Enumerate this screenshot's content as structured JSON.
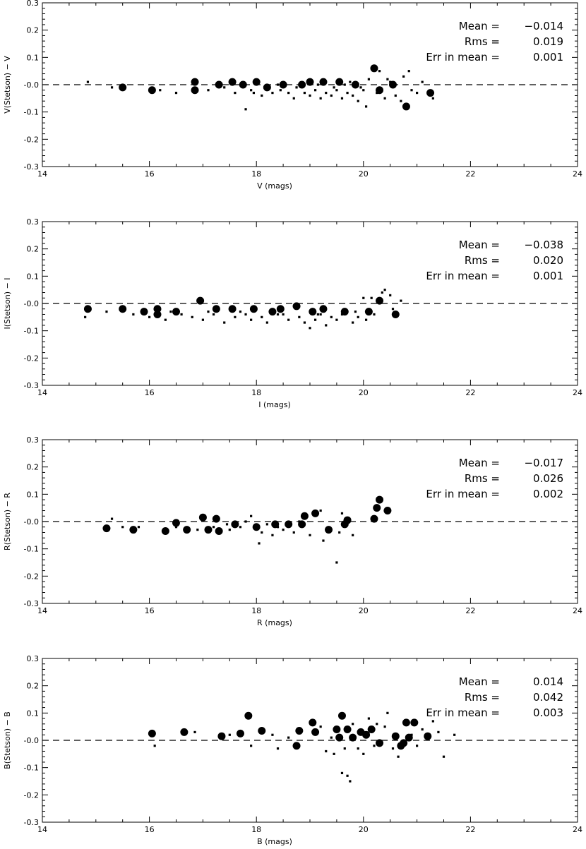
{
  "chart_data": [
    {
      "type": "scatter",
      "xlabel": "V (mags)",
      "ylabel": "V(Stetson) − V",
      "xlim": [
        14,
        24
      ],
      "ylim": [
        -0.3,
        0.3
      ],
      "xticks": [
        "14",
        "16",
        "18",
        "20",
        "22",
        "24"
      ],
      "yticks": [
        "-0.3",
        "-0.2",
        "-0.1",
        "-0.0",
        "0.1",
        "0.2",
        "0.3"
      ],
      "reference_line": 0.0,
      "stats": [
        {
          "label": "Mean =",
          "value": "−0.014"
        },
        {
          "label": "Rms =",
          "value": "0.019"
        },
        {
          "label": "Err in mean =",
          "value": "0.001"
        }
      ],
      "large_points": [
        [
          15.5,
          -0.01
        ],
        [
          16.05,
          -0.02
        ],
        [
          16.85,
          0.01
        ],
        [
          16.85,
          -0.02
        ],
        [
          17.3,
          0.0
        ],
        [
          17.55,
          0.01
        ],
        [
          17.75,
          0.0
        ],
        [
          18.0,
          0.01
        ],
        [
          18.2,
          -0.01
        ],
        [
          18.5,
          0.0
        ],
        [
          18.85,
          0.0
        ],
        [
          19.0,
          0.01
        ],
        [
          19.25,
          0.01
        ],
        [
          19.55,
          0.01
        ],
        [
          19.85,
          0.0
        ],
        [
          20.2,
          0.06
        ],
        [
          20.3,
          -0.02
        ],
        [
          20.55,
          0.0
        ],
        [
          20.8,
          -0.08
        ],
        [
          21.25,
          -0.03
        ]
      ],
      "small_points": [
        [
          14.85,
          0.01
        ],
        [
          15.3,
          -0.01
        ],
        [
          16.5,
          -0.03
        ],
        [
          16.2,
          -0.02
        ],
        [
          17.1,
          -0.02
        ],
        [
          17.4,
          -0.01
        ],
        [
          17.6,
          -0.03
        ],
        [
          17.8,
          -0.09
        ],
        [
          17.9,
          -0.02
        ],
        [
          18.1,
          -0.04
        ],
        [
          18.3,
          -0.03
        ],
        [
          18.4,
          0.0
        ],
        [
          18.6,
          -0.03
        ],
        [
          18.7,
          -0.05
        ],
        [
          18.9,
          -0.03
        ],
        [
          19.0,
          -0.04
        ],
        [
          19.1,
          -0.02
        ],
        [
          19.2,
          -0.05
        ],
        [
          19.3,
          -0.03
        ],
        [
          19.4,
          -0.04
        ],
        [
          19.5,
          -0.02
        ],
        [
          19.6,
          -0.05
        ],
        [
          19.7,
          -0.03
        ],
        [
          19.75,
          0.01
        ],
        [
          19.8,
          -0.04
        ],
        [
          19.9,
          -0.06
        ],
        [
          20.0,
          -0.02
        ],
        [
          20.05,
          -0.08
        ],
        [
          20.1,
          0.02
        ],
        [
          20.3,
          0.05
        ],
        [
          20.4,
          -0.05
        ],
        [
          20.5,
          0.01
        ],
        [
          20.6,
          -0.04
        ],
        [
          20.7,
          -0.06
        ],
        [
          20.75,
          0.03
        ],
        [
          20.85,
          0.05
        ],
        [
          20.9,
          -0.02
        ],
        [
          21.0,
          -0.03
        ],
        [
          21.1,
          0.01
        ],
        [
          21.3,
          -0.05
        ],
        [
          17.95,
          -0.03
        ],
        [
          18.15,
          -0.01
        ],
        [
          18.45,
          -0.02
        ],
        [
          18.75,
          -0.01
        ],
        [
          19.15,
          0.0
        ],
        [
          19.45,
          -0.01
        ],
        [
          19.65,
          0.0
        ],
        [
          19.95,
          -0.01
        ],
        [
          20.25,
          -0.03
        ],
        [
          20.45,
          0.02
        ]
      ]
    },
    {
      "type": "scatter",
      "xlabel": "I (mags)",
      "ylabel": "I(Stetson) − I",
      "xlim": [
        14,
        24
      ],
      "ylim": [
        -0.3,
        0.3
      ],
      "xticks": [
        "14",
        "16",
        "18",
        "20",
        "22",
        "24"
      ],
      "yticks": [
        "-0.3",
        "-0.2",
        "-0.1",
        "-0.0",
        "0.1",
        "0.2",
        "0.3"
      ],
      "reference_line": 0.0,
      "stats": [
        {
          "label": "Mean =",
          "value": "−0.038"
        },
        {
          "label": "Rms =",
          "value": "0.020"
        },
        {
          "label": "Err in mean =",
          "value": "0.001"
        }
      ],
      "large_points": [
        [
          14.85,
          -0.02
        ],
        [
          15.5,
          -0.02
        ],
        [
          15.9,
          -0.03
        ],
        [
          16.15,
          -0.02
        ],
        [
          16.15,
          -0.04
        ],
        [
          16.5,
          -0.03
        ],
        [
          16.95,
          0.01
        ],
        [
          17.25,
          -0.02
        ],
        [
          17.55,
          -0.02
        ],
        [
          17.95,
          -0.02
        ],
        [
          18.3,
          -0.03
        ],
        [
          18.45,
          -0.02
        ],
        [
          18.75,
          -0.01
        ],
        [
          19.05,
          -0.03
        ],
        [
          19.25,
          -0.02
        ],
        [
          19.65,
          -0.03
        ],
        [
          20.1,
          -0.03
        ],
        [
          20.3,
          0.01
        ],
        [
          20.6,
          -0.04
        ]
      ],
      "small_points": [
        [
          14.8,
          -0.05
        ],
        [
          15.2,
          -0.03
        ],
        [
          15.7,
          -0.04
        ],
        [
          16.0,
          -0.05
        ],
        [
          16.3,
          -0.06
        ],
        [
          16.6,
          -0.04
        ],
        [
          16.8,
          -0.05
        ],
        [
          17.0,
          -0.06
        ],
        [
          17.2,
          -0.04
        ],
        [
          17.4,
          -0.07
        ],
        [
          17.6,
          -0.05
        ],
        [
          17.8,
          -0.04
        ],
        [
          17.9,
          -0.06
        ],
        [
          18.1,
          -0.05
        ],
        [
          18.2,
          -0.07
        ],
        [
          18.5,
          -0.04
        ],
        [
          18.6,
          -0.06
        ],
        [
          18.8,
          -0.05
        ],
        [
          18.9,
          -0.07
        ],
        [
          19.0,
          -0.09
        ],
        [
          19.1,
          -0.06
        ],
        [
          19.2,
          -0.04
        ],
        [
          19.3,
          -0.08
        ],
        [
          19.4,
          -0.05
        ],
        [
          19.5,
          -0.06
        ],
        [
          19.6,
          -0.04
        ],
        [
          19.8,
          -0.07
        ],
        [
          19.9,
          -0.05
        ],
        [
          20.0,
          0.02
        ],
        [
          20.05,
          -0.06
        ],
        [
          20.15,
          0.02
        ],
        [
          20.2,
          -0.04
        ],
        [
          20.35,
          0.04
        ],
        [
          20.4,
          0.05
        ],
        [
          20.5,
          0.03
        ],
        [
          20.55,
          -0.02
        ],
        [
          20.7,
          0.01
        ],
        [
          16.4,
          -0.03
        ],
        [
          17.1,
          -0.03
        ],
        [
          17.7,
          -0.03
        ],
        [
          18.4,
          -0.04
        ],
        [
          19.15,
          -0.04
        ],
        [
          19.85,
          -0.03
        ]
      ]
    },
    {
      "type": "scatter",
      "xlabel": "R (mags)",
      "ylabel": "R(Stetson) − R",
      "xlim": [
        14,
        24
      ],
      "ylim": [
        -0.3,
        0.3
      ],
      "xticks": [
        "14",
        "16",
        "18",
        "20",
        "22",
        "24"
      ],
      "yticks": [
        "-0.3",
        "-0.2",
        "-0.1",
        "-0.0",
        "0.1",
        "0.2",
        "0.3"
      ],
      "reference_line": 0.0,
      "stats": [
        {
          "label": "Mean =",
          "value": "−0.017"
        },
        {
          "label": "Rms =",
          "value": "0.026"
        },
        {
          "label": "Err in mean =",
          "value": "0.002"
        }
      ],
      "large_points": [
        [
          15.2,
          -0.025
        ],
        [
          15.7,
          -0.03
        ],
        [
          16.3,
          -0.035
        ],
        [
          16.5,
          -0.005
        ],
        [
          16.7,
          -0.03
        ],
        [
          17.0,
          0.015
        ],
        [
          17.1,
          -0.03
        ],
        [
          17.25,
          0.01
        ],
        [
          17.3,
          -0.035
        ],
        [
          17.6,
          -0.01
        ],
        [
          18.0,
          -0.02
        ],
        [
          18.35,
          -0.01
        ],
        [
          18.6,
          -0.01
        ],
        [
          18.85,
          -0.01
        ],
        [
          18.9,
          0.02
        ],
        [
          19.1,
          0.03
        ],
        [
          19.35,
          -0.03
        ],
        [
          19.7,
          0.005
        ],
        [
          19.65,
          -0.01
        ],
        [
          20.2,
          0.01
        ],
        [
          20.25,
          0.05
        ],
        [
          20.3,
          0.08
        ],
        [
          20.45,
          0.04
        ]
      ],
      "small_points": [
        [
          15.3,
          0.01
        ],
        [
          15.5,
          -0.02
        ],
        [
          15.8,
          -0.02
        ],
        [
          16.5,
          -0.02
        ],
        [
          16.9,
          -0.03
        ],
        [
          17.2,
          -0.02
        ],
        [
          17.5,
          -0.03
        ],
        [
          17.7,
          -0.02
        ],
        [
          17.8,
          0.0
        ],
        [
          17.9,
          0.02
        ],
        [
          18.1,
          -0.04
        ],
        [
          18.2,
          -0.01
        ],
        [
          18.3,
          -0.05
        ],
        [
          18.4,
          -0.02
        ],
        [
          18.5,
          -0.03
        ],
        [
          18.7,
          -0.04
        ],
        [
          18.8,
          0.0
        ],
        [
          19.0,
          -0.05
        ],
        [
          19.2,
          0.04
        ],
        [
          19.25,
          -0.07
        ],
        [
          19.5,
          -0.15
        ],
        [
          19.55,
          -0.04
        ],
        [
          19.6,
          0.03
        ],
        [
          19.8,
          -0.05
        ],
        [
          18.05,
          -0.08
        ],
        [
          17.45,
          -0.01
        ]
      ]
    },
    {
      "type": "scatter",
      "xlabel": "B (mags)",
      "ylabel": "B(Stetson) − B",
      "xlim": [
        14,
        24
      ],
      "ylim": [
        -0.3,
        0.3
      ],
      "xticks": [
        "14",
        "16",
        "18",
        "20",
        "22",
        "24"
      ],
      "yticks": [
        "-0.3",
        "-0.2",
        "-0.1",
        "-0.0",
        "0.1",
        "0.2",
        "0.3"
      ],
      "reference_line": 0.0,
      "stats": [
        {
          "label": "Mean =",
          "value": "0.014"
        },
        {
          "label": "Rms =",
          "value": "0.042"
        },
        {
          "label": "Err in mean =",
          "value": "0.003"
        }
      ],
      "large_points": [
        [
          16.05,
          0.025
        ],
        [
          16.65,
          0.03
        ],
        [
          17.35,
          0.015
        ],
        [
          17.7,
          0.025
        ],
        [
          17.85,
          0.09
        ],
        [
          18.1,
          0.035
        ],
        [
          18.75,
          -0.02
        ],
        [
          18.8,
          0.035
        ],
        [
          19.05,
          0.065
        ],
        [
          19.1,
          0.03
        ],
        [
          19.5,
          0.04
        ],
        [
          19.55,
          0.01
        ],
        [
          19.6,
          0.09
        ],
        [
          19.7,
          0.04
        ],
        [
          19.8,
          0.01
        ],
        [
          19.95,
          0.03
        ],
        [
          20.05,
          0.02
        ],
        [
          20.15,
          0.04
        ],
        [
          20.3,
          -0.01
        ],
        [
          20.6,
          0.015
        ],
        [
          20.7,
          -0.02
        ],
        [
          20.8,
          0.065
        ],
        [
          20.85,
          0.01
        ],
        [
          20.95,
          0.065
        ],
        [
          21.2,
          0.015
        ],
        [
          20.75,
          -0.01
        ]
      ],
      "small_points": [
        [
          16.1,
          -0.02
        ],
        [
          16.85,
          0.03
        ],
        [
          17.5,
          0.02
        ],
        [
          17.9,
          -0.02
        ],
        [
          18.3,
          0.02
        ],
        [
          18.4,
          -0.03
        ],
        [
          18.6,
          0.01
        ],
        [
          19.2,
          0.05
        ],
        [
          19.3,
          -0.04
        ],
        [
          19.4,
          0.01
        ],
        [
          19.45,
          -0.05
        ],
        [
          19.6,
          -0.12
        ],
        [
          19.7,
          -0.13
        ],
        [
          19.75,
          -0.15
        ],
        [
          19.8,
          0.06
        ],
        [
          19.9,
          -0.03
        ],
        [
          20.0,
          -0.05
        ],
        [
          20.1,
          0.08
        ],
        [
          20.2,
          -0.02
        ],
        [
          20.4,
          0.05
        ],
        [
          20.45,
          0.1
        ],
        [
          20.55,
          -0.03
        ],
        [
          20.65,
          -0.06
        ],
        [
          20.9,
          0.02
        ],
        [
          21.0,
          -0.02
        ],
        [
          21.1,
          0.04
        ],
        [
          21.3,
          0.07
        ],
        [
          21.4,
          0.03
        ],
        [
          21.5,
          -0.06
        ],
        [
          21.7,
          0.02
        ],
        [
          19.65,
          -0.03
        ],
        [
          20.25,
          0.06
        ]
      ]
    }
  ]
}
